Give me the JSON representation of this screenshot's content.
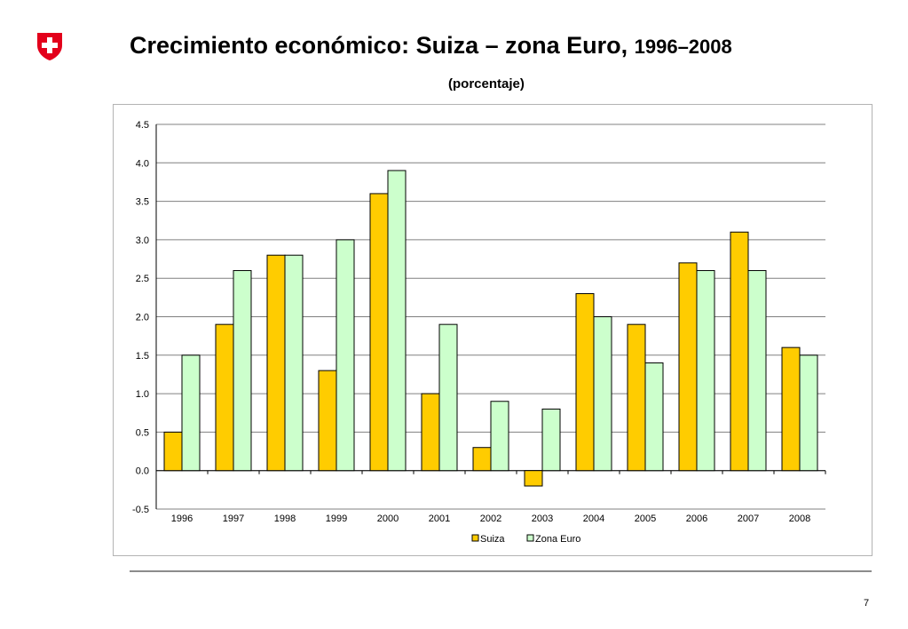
{
  "slide": {
    "title_main": "Crecimiento económico: Suiza – zona Euro,",
    "title_years": "1996–2008",
    "subtitle": "(porcentaje)",
    "page_number": "7"
  },
  "colors": {
    "suiza": "#FFCC00",
    "zona_euro": "#CCFFCC",
    "logo_red": "#E3001B",
    "grid": "#808080"
  },
  "chart_data": {
    "type": "bar",
    "categories": [
      "1996",
      "1997",
      "1998",
      "1999",
      "2000",
      "2001",
      "2002",
      "2003",
      "2004",
      "2005",
      "2006",
      "2007",
      "2008"
    ],
    "series": [
      {
        "name": "Suiza",
        "values": [
          0.5,
          1.9,
          2.8,
          1.3,
          3.6,
          1.0,
          0.3,
          -0.2,
          2.3,
          1.9,
          2.7,
          3.1,
          1.6
        ]
      },
      {
        "name": "Zona Euro",
        "values": [
          1.5,
          2.6,
          2.8,
          3.0,
          3.9,
          1.9,
          0.9,
          0.8,
          2.0,
          1.4,
          2.6,
          2.6,
          1.5
        ]
      }
    ],
    "ylim": [
      -0.5,
      4.5
    ],
    "yticks": [
      "-0.5",
      "0.0",
      "0.5",
      "1.0",
      "1.5",
      "2.0",
      "2.5",
      "3.0",
      "3.5",
      "4.0",
      "4.5"
    ],
    "grid": true,
    "legend": "bottom-center",
    "xlabel": "",
    "ylabel": ""
  }
}
